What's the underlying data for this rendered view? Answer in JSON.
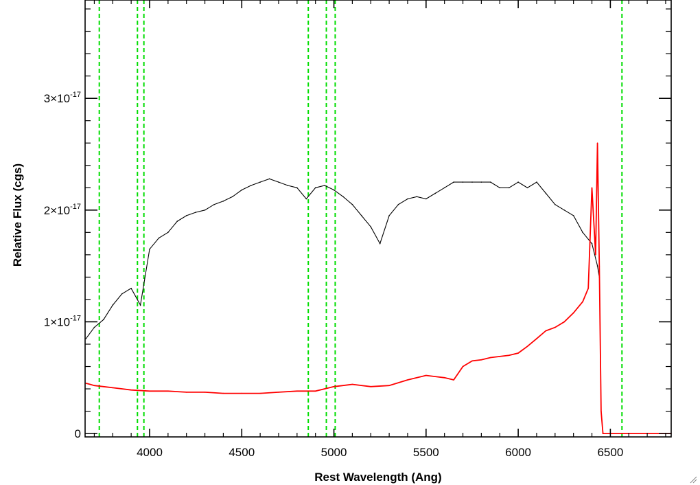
{
  "chart_data": {
    "type": "line",
    "xlabel": "Rest Wavelength (Ang)",
    "ylabel": "Relative Flux (cgs)",
    "xlim": [
      3650,
      6830
    ],
    "ylim": [
      -3e-19,
      3.88e-17
    ],
    "grid": false,
    "x_ticks": [
      4000,
      4500,
      5000,
      5500,
      6000,
      6500
    ],
    "x_tick_labels": [
      "4000",
      "4500",
      "5000",
      "5500",
      "6000",
      "6500"
    ],
    "y_ticks": [
      0,
      1e-17,
      2e-17,
      3e-17
    ],
    "y_tick_labels": [
      {
        "mantissa": "0",
        "exponent": ""
      },
      {
        "mantissa": "1×10",
        "exponent": "-17"
      },
      {
        "mantissa": "2×10",
        "exponent": "-17"
      },
      {
        "mantissa": "3×10",
        "exponent": "-17"
      }
    ],
    "vlines": [
      3727,
      3934,
      3969,
      4861,
      4959,
      5007,
      6563
    ],
    "colors": {
      "spectrum": "#000000",
      "error": "#ff0000",
      "vline": "#00dd00"
    },
    "series": [
      {
        "role": "spectrum",
        "x": [
          3655,
          3700,
          3750,
          3800,
          3850,
          3900,
          3950,
          4000,
          4050,
          4100,
          4150,
          4200,
          4250,
          4300,
          4350,
          4400,
          4450,
          4500,
          4550,
          4600,
          4650,
          4700,
          4750,
          4800,
          4850,
          4900,
          4950,
          5000,
          5050,
          5100,
          5150,
          5200,
          5250,
          5300,
          5350,
          5400,
          5450,
          5500,
          5550,
          5600,
          5650,
          5700,
          5750,
          5800,
          5850,
          5900,
          5950,
          6000,
          6050,
          6100,
          6150,
          6200,
          6250,
          6300,
          6350,
          6400,
          6430,
          6440
        ],
        "y": [
          8.5e-18,
          9.5e-18,
          1.02e-17,
          1.15e-17,
          1.25e-17,
          1.3e-17,
          1.15e-17,
          1.65e-17,
          1.75e-17,
          1.8e-17,
          1.9e-17,
          1.95e-17,
          1.98e-17,
          2e-17,
          2.05e-17,
          2.08e-17,
          2.12e-17,
          2.18e-17,
          2.22e-17,
          2.25e-17,
          2.28e-17,
          2.25e-17,
          2.22e-17,
          2.2e-17,
          2.1e-17,
          2.2e-17,
          2.22e-17,
          2.18e-17,
          2.12e-17,
          2.05e-17,
          1.95e-17,
          1.85e-17,
          1.7e-17,
          1.95e-17,
          2.05e-17,
          2.1e-17,
          2.12e-17,
          2.1e-17,
          2.15e-17,
          2.2e-17,
          2.25e-17,
          2.25e-17,
          2.25e-17,
          2.25e-17,
          2.25e-17,
          2.2e-17,
          2.2e-17,
          2.25e-17,
          2.2e-17,
          2.25e-17,
          2.15e-17,
          2.05e-17,
          2e-17,
          1.95e-17,
          1.8e-17,
          1.7e-17,
          1.5e-17,
          1.4e-17
        ]
      },
      {
        "role": "error",
        "x": [
          3655,
          3700,
          3750,
          3800,
          3900,
          4000,
          4100,
          4200,
          4300,
          4400,
          4500,
          4600,
          4700,
          4800,
          4900,
          5000,
          5100,
          5200,
          5300,
          5400,
          5500,
          5600,
          5650,
          5700,
          5750,
          5800,
          5850,
          5900,
          5950,
          6000,
          6050,
          6100,
          6150,
          6200,
          6250,
          6300,
          6350,
          6380,
          6400,
          6420,
          6430,
          6440,
          6450,
          6460,
          6830
        ],
        "y": [
          4.5e-18,
          4.3e-18,
          4.2e-18,
          4.1e-18,
          3.9e-18,
          3.8e-18,
          3.8e-18,
          3.7e-18,
          3.7e-18,
          3.6e-18,
          3.6e-18,
          3.6e-18,
          3.7e-18,
          3.8e-18,
          3.8e-18,
          4.2e-18,
          4.4e-18,
          4.2e-18,
          4.3e-18,
          4.8e-18,
          5.2e-18,
          5e-18,
          4.8e-18,
          6e-18,
          6.5e-18,
          6.6e-18,
          6.8e-18,
          6.9e-18,
          7e-18,
          7.2e-18,
          7.8e-18,
          8.5e-18,
          9.2e-18,
          9.5e-18,
          1e-17,
          1.08e-17,
          1.18e-17,
          1.3e-17,
          2.2e-17,
          1.6e-17,
          2.6e-17,
          1.5e-17,
          2e-18,
          0,
          0
        ]
      }
    ]
  }
}
